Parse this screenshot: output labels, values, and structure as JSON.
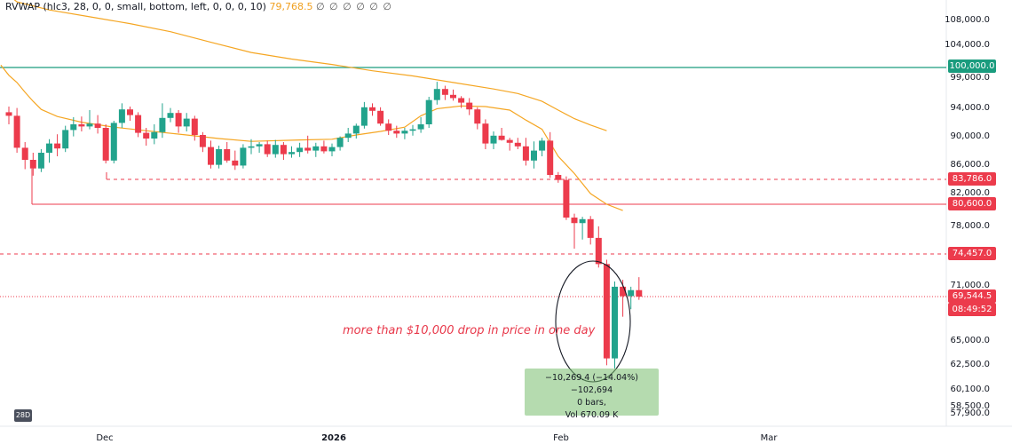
{
  "indicator": {
    "label": "RVWAP (hlc3, 28, 0, 0, small, bottom, left, 0, 0, 0, 10)",
    "value": "79,768.5",
    "zeros": "∅ ∅ ∅ ∅ ∅ ∅"
  },
  "annotation": "more than $10,000 drop in price in one day",
  "measure": {
    "line1": "−10,269.4 (−14.04%) −102,694",
    "line2": "0 bars,",
    "line3": "Vol 670.09 K"
  },
  "badge": "28D",
  "price_tags": {
    "p100000": "100,000.0",
    "p83786": "83,786.0",
    "p80600": "80,600.0",
    "p74457": "74,457.0",
    "current_price": "69,544.5",
    "countdown": "08:49:52"
  },
  "colors": {
    "up": "#22a38c",
    "down": "#ec3b4c",
    "vwap": "#f5a623",
    "green_line": "#1a9c7e",
    "red_line": "#ec3b4c"
  },
  "chart_data": {
    "type": "candlestick",
    "y_ticks": [
      "108,000.0",
      "104,000.0",
      "99,000.0",
      "94,000.0",
      "90,000.0",
      "86,000.0",
      "82,000.0",
      "78,000.0",
      "71,000.0",
      "65,000.0",
      "62,500.0",
      "60,100.0",
      "58,500.0",
      "57,900.0"
    ],
    "x_ticks": [
      "Dec",
      "2026",
      "Feb",
      "Mar"
    ],
    "levels": [
      100000,
      83786,
      80600,
      74457
    ],
    "current_price": 69544.5,
    "candles": [
      {
        "o": 93200,
        "h": 94000,
        "l": 91500,
        "c": 92700
      },
      {
        "o": 92700,
        "h": 93800,
        "l": 87500,
        "c": 88200
      },
      {
        "o": 88200,
        "h": 89000,
        "l": 85200,
        "c": 86500
      },
      {
        "o": 86500,
        "h": 87500,
        "l": 84300,
        "c": 85300
      },
      {
        "o": 85300,
        "h": 88000,
        "l": 84800,
        "c": 87500
      },
      {
        "o": 87500,
        "h": 89400,
        "l": 86100,
        "c": 88800
      },
      {
        "o": 88800,
        "h": 90100,
        "l": 87000,
        "c": 88100
      },
      {
        "o": 88100,
        "h": 91300,
        "l": 87600,
        "c": 90700
      },
      {
        "o": 90700,
        "h": 92500,
        "l": 89800,
        "c": 91500
      },
      {
        "o": 91500,
        "h": 92600,
        "l": 90500,
        "c": 91200
      },
      {
        "o": 91200,
        "h": 93500,
        "l": 90800,
        "c": 91600
      },
      {
        "o": 91600,
        "h": 92800,
        "l": 90200,
        "c": 91000
      },
      {
        "o": 91000,
        "h": 91500,
        "l": 86000,
        "c": 86400
      },
      {
        "o": 86400,
        "h": 92000,
        "l": 86000,
        "c": 91700
      },
      {
        "o": 91700,
        "h": 94500,
        "l": 91000,
        "c": 93600
      },
      {
        "o": 93600,
        "h": 94000,
        "l": 92000,
        "c": 92800
      },
      {
        "o": 92800,
        "h": 93200,
        "l": 89700,
        "c": 90300
      },
      {
        "o": 90300,
        "h": 91000,
        "l": 88500,
        "c": 89500
      },
      {
        "o": 89500,
        "h": 91500,
        "l": 88700,
        "c": 90400
      },
      {
        "o": 90400,
        "h": 94500,
        "l": 89600,
        "c": 92400
      },
      {
        "o": 92400,
        "h": 93800,
        "l": 91800,
        "c": 93100
      },
      {
        "o": 93100,
        "h": 93500,
        "l": 90300,
        "c": 91200
      },
      {
        "o": 91200,
        "h": 93100,
        "l": 90500,
        "c": 92300
      },
      {
        "o": 92300,
        "h": 92700,
        "l": 89200,
        "c": 90000
      },
      {
        "o": 90000,
        "h": 90400,
        "l": 87600,
        "c": 88300
      },
      {
        "o": 88300,
        "h": 89200,
        "l": 85300,
        "c": 85800
      },
      {
        "o": 85800,
        "h": 88500,
        "l": 85300,
        "c": 88000
      },
      {
        "o": 88000,
        "h": 89000,
        "l": 86100,
        "c": 86400
      },
      {
        "o": 86400,
        "h": 87800,
        "l": 85100,
        "c": 85700
      },
      {
        "o": 85700,
        "h": 88700,
        "l": 85300,
        "c": 88200
      },
      {
        "o": 88200,
        "h": 89400,
        "l": 87300,
        "c": 88400
      },
      {
        "o": 88400,
        "h": 89000,
        "l": 87500,
        "c": 88700
      },
      {
        "o": 88700,
        "h": 89200,
        "l": 86900,
        "c": 87300
      },
      {
        "o": 87300,
        "h": 89300,
        "l": 86800,
        "c": 88600
      },
      {
        "o": 88600,
        "h": 89000,
        "l": 86500,
        "c": 87300
      },
      {
        "o": 87300,
        "h": 88400,
        "l": 86800,
        "c": 87600
      },
      {
        "o": 87600,
        "h": 88900,
        "l": 86900,
        "c": 88200
      },
      {
        "o": 88200,
        "h": 89900,
        "l": 87400,
        "c": 87800
      },
      {
        "o": 87800,
        "h": 88900,
        "l": 86900,
        "c": 88400
      },
      {
        "o": 88400,
        "h": 89200,
        "l": 87400,
        "c": 87700
      },
      {
        "o": 87700,
        "h": 88800,
        "l": 87000,
        "c": 88300
      },
      {
        "o": 88300,
        "h": 89800,
        "l": 87800,
        "c": 89600
      },
      {
        "o": 89600,
        "h": 91000,
        "l": 89000,
        "c": 90200
      },
      {
        "o": 90200,
        "h": 91600,
        "l": 89500,
        "c": 91300
      },
      {
        "o": 91300,
        "h": 94700,
        "l": 90900,
        "c": 93900
      },
      {
        "o": 93900,
        "h": 94500,
        "l": 92700,
        "c": 93400
      },
      {
        "o": 93400,
        "h": 93900,
        "l": 91300,
        "c": 91600
      },
      {
        "o": 91600,
        "h": 92200,
        "l": 90000,
        "c": 90600
      },
      {
        "o": 90600,
        "h": 91300,
        "l": 89600,
        "c": 90200
      },
      {
        "o": 90200,
        "h": 91000,
        "l": 89400,
        "c": 90600
      },
      {
        "o": 90600,
        "h": 91400,
        "l": 89900,
        "c": 90800
      },
      {
        "o": 90800,
        "h": 92500,
        "l": 90300,
        "c": 91500
      },
      {
        "o": 91500,
        "h": 95500,
        "l": 91000,
        "c": 95000
      },
      {
        "o": 95000,
        "h": 97800,
        "l": 94300,
        "c": 96700
      },
      {
        "o": 96700,
        "h": 97200,
        "l": 95000,
        "c": 95800
      },
      {
        "o": 95800,
        "h": 96600,
        "l": 94900,
        "c": 95300
      },
      {
        "o": 95300,
        "h": 95600,
        "l": 93800,
        "c": 94600
      },
      {
        "o": 94600,
        "h": 95300,
        "l": 92800,
        "c": 93600
      },
      {
        "o": 93600,
        "h": 93900,
        "l": 90800,
        "c": 91600
      },
      {
        "o": 91600,
        "h": 92200,
        "l": 88000,
        "c": 88800
      },
      {
        "o": 88800,
        "h": 90500,
        "l": 88000,
        "c": 89900
      },
      {
        "o": 89900,
        "h": 91000,
        "l": 89200,
        "c": 89300
      },
      {
        "o": 89300,
        "h": 89600,
        "l": 87800,
        "c": 88900
      },
      {
        "o": 88900,
        "h": 89600,
        "l": 88000,
        "c": 88400
      },
      {
        "o": 88400,
        "h": 89600,
        "l": 85700,
        "c": 86400
      },
      {
        "o": 86400,
        "h": 89100,
        "l": 85300,
        "c": 87800
      },
      {
        "o": 87800,
        "h": 89600,
        "l": 87000,
        "c": 89200
      },
      {
        "o": 89200,
        "h": 90400,
        "l": 84000,
        "c": 84400
      },
      {
        "o": 84400,
        "h": 84800,
        "l": 83300,
        "c": 83700
      },
      {
        "o": 83700,
        "h": 84200,
        "l": 78600,
        "c": 78900
      },
      {
        "o": 78900,
        "h": 79400,
        "l": 75100,
        "c": 78200
      },
      {
        "o": 78200,
        "h": 79000,
        "l": 76200,
        "c": 78700
      },
      {
        "o": 78700,
        "h": 79100,
        "l": 75600,
        "c": 76400
      },
      {
        "o": 76400,
        "h": 77800,
        "l": 72900,
        "c": 73300
      },
      {
        "o": 73300,
        "h": 73800,
        "l": 62300,
        "c": 63000
      },
      {
        "o": 63000,
        "h": 71300,
        "l": 62000,
        "c": 70700
      },
      {
        "o": 70700,
        "h": 71500,
        "l": 67400,
        "c": 69600
      },
      {
        "o": 69600,
        "h": 70700,
        "l": 68200,
        "c": 70300
      },
      {
        "o": 70300,
        "h": 71800,
        "l": 69200,
        "c": 69545
      }
    ],
    "rvwap": [
      {
        "i": -1,
        "v": 112800
      },
      {
        "i": 1,
        "v": 110700
      },
      {
        "i": 5,
        "v": 109400
      },
      {
        "i": 10,
        "v": 108300
      },
      {
        "i": 15,
        "v": 107200
      },
      {
        "i": 20,
        "v": 105900
      },
      {
        "i": 25,
        "v": 104200
      },
      {
        "i": 30,
        "v": 102500
      },
      {
        "i": 35,
        "v": 101400
      },
      {
        "i": 40,
        "v": 100500
      },
      {
        "i": 45,
        "v": 99500
      },
      {
        "i": 50,
        "v": 98700
      },
      {
        "i": 55,
        "v": 97700
      },
      {
        "i": 60,
        "v": 96700
      },
      {
        "i": 63,
        "v": 96000
      },
      {
        "i": 66,
        "v": 94800
      },
      {
        "i": 68,
        "v": 93500
      },
      {
        "i": 70,
        "v": 92300
      },
      {
        "i": 72,
        "v": 91400
      },
      {
        "i": 74,
        "v": 90600
      }
    ],
    "rvwap_lower": [
      {
        "i": -1,
        "v": 100400
      },
      {
        "i": 0,
        "v": 98800
      },
      {
        "i": 1,
        "v": 97700
      },
      {
        "i": 2,
        "v": 96200
      },
      {
        "i": 3,
        "v": 94800
      },
      {
        "i": 4,
        "v": 93600
      },
      {
        "i": 6,
        "v": 92600
      },
      {
        "i": 9,
        "v": 91800
      },
      {
        "i": 13,
        "v": 91100
      },
      {
        "i": 17,
        "v": 90600
      },
      {
        "i": 22,
        "v": 90000
      },
      {
        "i": 26,
        "v": 89500
      },
      {
        "i": 30,
        "v": 89100
      },
      {
        "i": 36,
        "v": 89300
      },
      {
        "i": 40,
        "v": 89400
      },
      {
        "i": 43,
        "v": 90000
      },
      {
        "i": 46,
        "v": 90500
      },
      {
        "i": 49,
        "v": 91100
      },
      {
        "i": 51,
        "v": 92700
      },
      {
        "i": 53,
        "v": 93700
      },
      {
        "i": 56,
        "v": 94100
      },
      {
        "i": 59,
        "v": 94000
      },
      {
        "i": 62,
        "v": 93500
      },
      {
        "i": 64,
        "v": 92100
      },
      {
        "i": 66,
        "v": 90800
      },
      {
        "i": 68,
        "v": 87000
      },
      {
        "i": 70,
        "v": 84600
      },
      {
        "i": 72,
        "v": 81800
      },
      {
        "i": 74,
        "v": 80600
      },
      {
        "i": 76,
        "v": 79800
      }
    ]
  }
}
